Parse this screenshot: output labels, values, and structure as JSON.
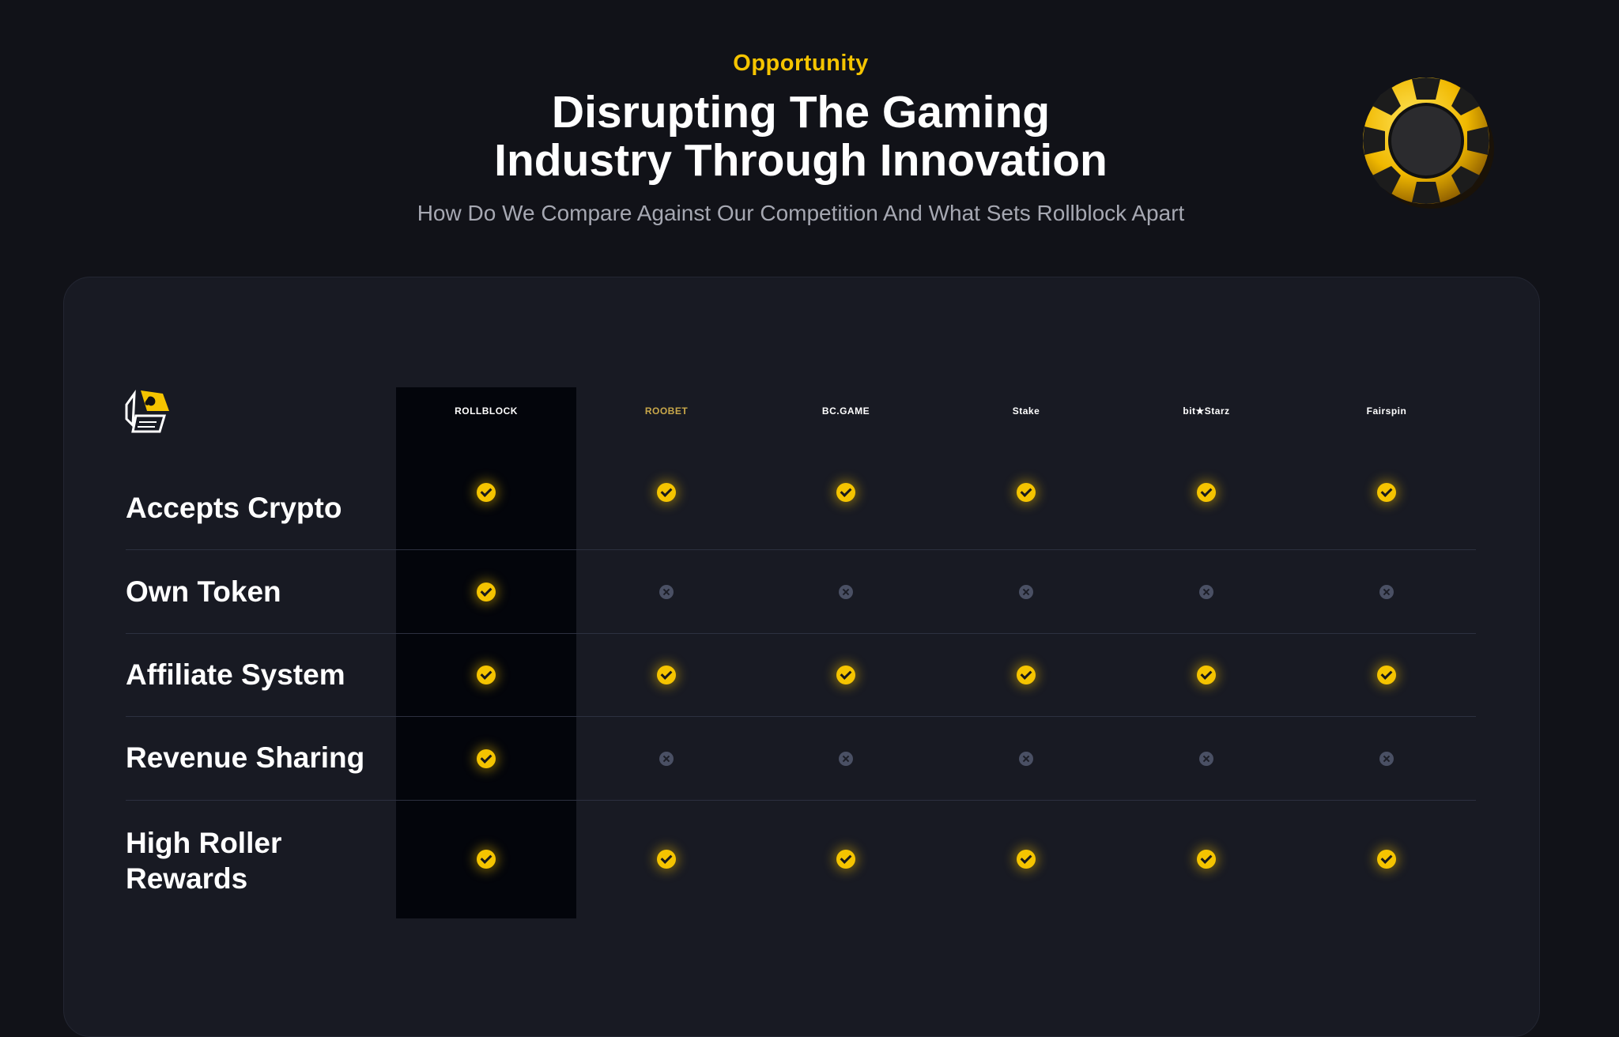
{
  "header": {
    "eyebrow": "Opportunity",
    "title_line1": "Disrupting The Gaming",
    "title_line2": "Industry Through Innovation",
    "subtitle": "How Do We Compare Against Our Competition And What Sets Rollblock Apart"
  },
  "colors": {
    "accent": "#f5c400",
    "background": "#111218",
    "panel": "#181a23",
    "highlight_column": "#03050b",
    "cross": "#4a5064"
  },
  "icons": {
    "corner_logo": "rollblock-dice-logo-icon",
    "decoration": "poker-chip-icon",
    "yes": "check-circle-icon",
    "no": "x-circle-icon"
  },
  "brands": [
    {
      "name": "ROLLBLOCK",
      "color": "#ffffff"
    },
    {
      "name": "ROOBET",
      "color": "#c9a84a"
    },
    {
      "name": "BC.GAME",
      "color": "#ffffff"
    },
    {
      "name": "Stake",
      "color": "#ffffff"
    },
    {
      "name": "bit★Starz",
      "color": "#ffffff"
    },
    {
      "name": "Fairspin",
      "color": "#ffffff"
    }
  ],
  "rows": [
    {
      "label": "Accepts Crypto",
      "values": [
        true,
        true,
        true,
        true,
        true,
        true
      ]
    },
    {
      "label": "Own Token",
      "values": [
        true,
        false,
        false,
        false,
        false,
        false
      ]
    },
    {
      "label": "Affiliate System",
      "values": [
        true,
        true,
        true,
        true,
        true,
        true
      ]
    },
    {
      "label": "Revenue Sharing",
      "values": [
        true,
        false,
        false,
        false,
        false,
        false
      ]
    },
    {
      "label": "High Roller Rewards",
      "values": [
        true,
        true,
        true,
        true,
        true,
        true
      ]
    }
  ]
}
